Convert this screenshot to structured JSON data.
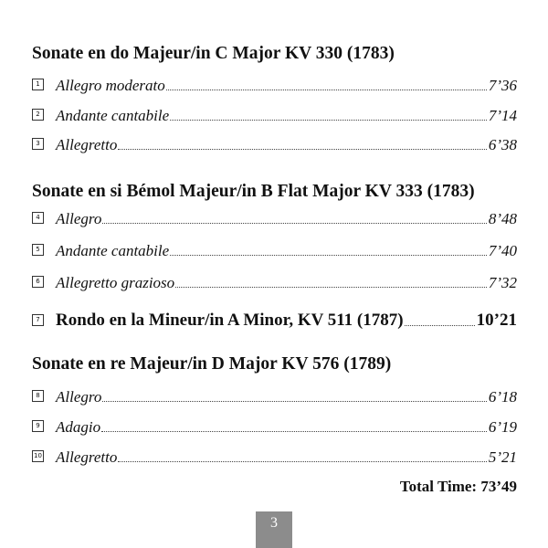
{
  "sections": [
    {
      "heading": "Sonate en do Majeur/in C Major KV 330 (1783)"
    },
    {
      "heading": "Sonate en si Bémol Majeur/in B Flat Major KV 333 (1783)"
    },
    {
      "heading": "Sonate en re Majeur/in D Major KV 576 (1789)"
    }
  ],
  "tracks": [
    {
      "num": "1",
      "title": "Allegro moderato",
      "time": "7’36"
    },
    {
      "num": "2",
      "title": "Andante cantabile",
      "time": "7’14"
    },
    {
      "num": "3",
      "title": "Allegretto",
      "time": "6’38"
    },
    {
      "num": "4",
      "title": "Allegro",
      "time": "8’48"
    },
    {
      "num": "5",
      "title": "Andante cantabile",
      "time": "7’40"
    },
    {
      "num": "6",
      "title": "Allegretto grazioso",
      "time": "7’32"
    },
    {
      "num": "7",
      "title": "Rondo en la Mineur/in A Minor, KV 511 (1787)",
      "time": "10’21"
    },
    {
      "num": "8",
      "title": "Allegro",
      "time": "6’18"
    },
    {
      "num": "9",
      "title": "Adagio",
      "time": "6’19"
    },
    {
      "num": "10",
      "title": "Allegretto",
      "time": "5’21"
    }
  ],
  "total": "Total Time: 73’49",
  "page_number": "3"
}
